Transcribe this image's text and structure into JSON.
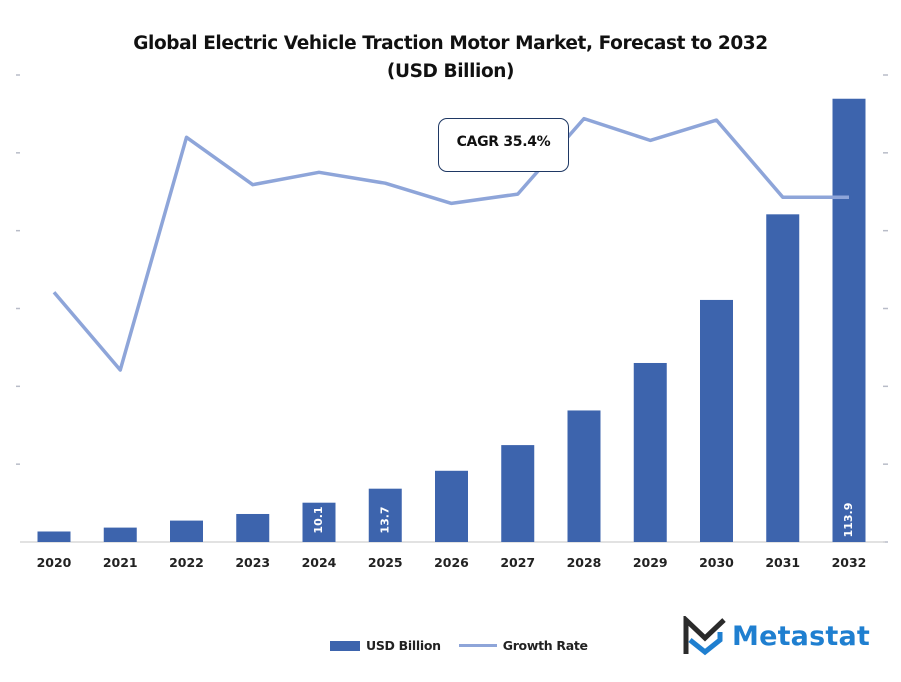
{
  "chart_data": {
    "type": "bar",
    "title": "Global Electric Vehicle Traction Motor Market, Forecast to 2032",
    "subtitle": "(USD Billion)",
    "xlabel": "",
    "ylabel": "",
    "categories": [
      "2020",
      "2021",
      "2022",
      "2023",
      "2024",
      "2025",
      "2026",
      "2027",
      "2028",
      "2029",
      "2030",
      "2031",
      "2032"
    ],
    "series": [
      {
        "name": "USD Billion",
        "type": "bar",
        "color": "#3d64ad",
        "axis": "left",
        "values": [
          2.7,
          3.7,
          5.5,
          7.2,
          10.1,
          13.7,
          18.3,
          24.9,
          33.8,
          46.0,
          62.2,
          84.2,
          113.9
        ],
        "data_labels": {
          "2024": "10.1",
          "2025": "13.7",
          "2032": "113.9"
        }
      },
      {
        "name": "Growth Rate",
        "type": "line",
        "color": "#8ea5d9",
        "axis": "right",
        "values": [
          32.1,
          22.1,
          52.0,
          45.9,
          47.5,
          46.1,
          43.5,
          44.7,
          54.4,
          51.6,
          54.2,
          44.3,
          44.3
        ]
      }
    ],
    "ylim": [
      0,
      120
    ],
    "y2lim": [
      0,
      60
    ],
    "y_ticks_count": 7,
    "y_tick_labels_visible": false,
    "grid": false,
    "legend": {
      "position": "bottom",
      "entries": [
        "USD Billion",
        "Growth Rate"
      ]
    },
    "annotations": [
      {
        "text": "CAGR 35.4%",
        "position": "top-center"
      }
    ]
  },
  "branding": {
    "logo_text": "Metastat"
  }
}
